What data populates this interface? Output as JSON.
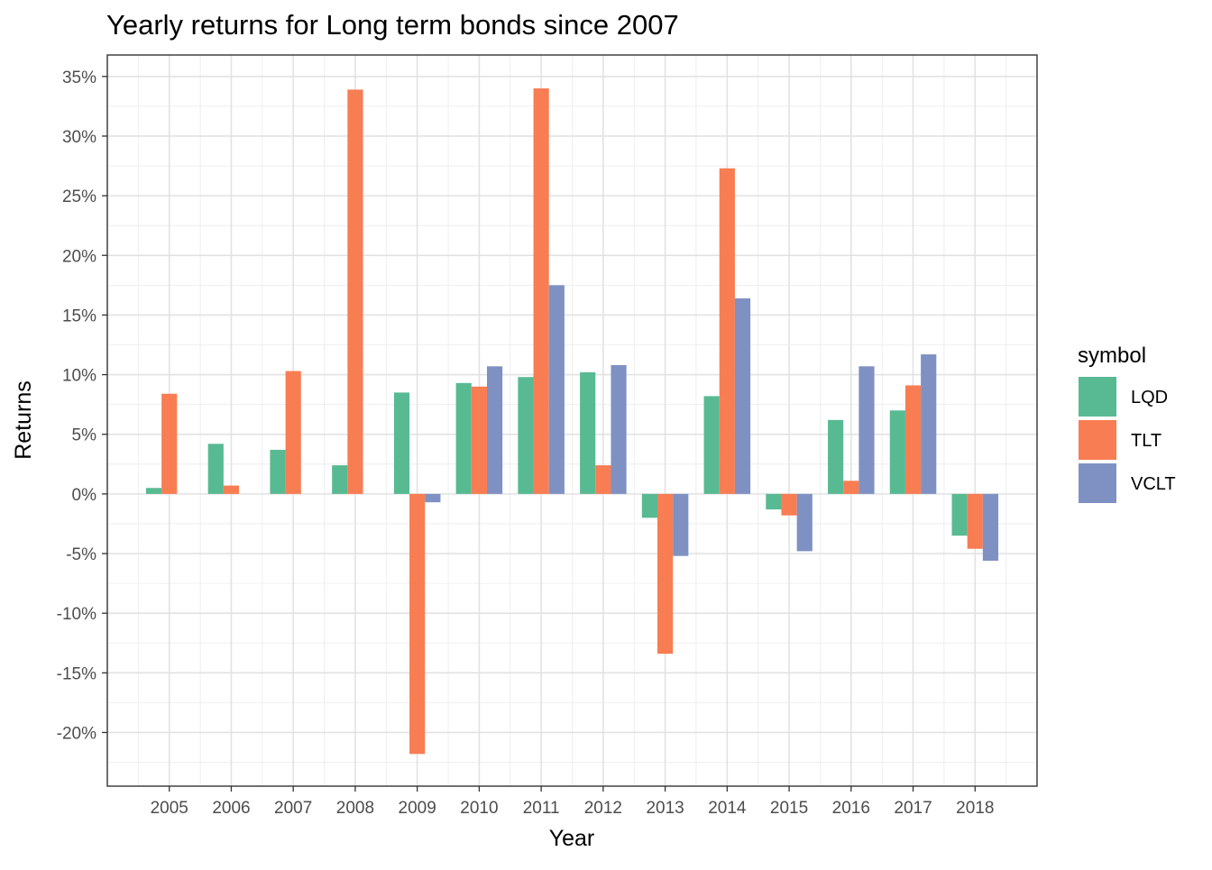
{
  "chart_data": {
    "type": "bar",
    "title": "Yearly returns for Long term bonds since 2007",
    "xlabel": "Year",
    "ylabel": "Returns",
    "categories": [
      "2005",
      "2006",
      "2007",
      "2008",
      "2009",
      "2010",
      "2011",
      "2012",
      "2013",
      "2014",
      "2015",
      "2016",
      "2017",
      "2018"
    ],
    "yticks": [
      35,
      30,
      25,
      20,
      15,
      10,
      5,
      0,
      -5,
      -10,
      -15,
      -20
    ],
    "ytick_labels": [
      "35%",
      "30%",
      "25%",
      "20%",
      "15%",
      "10%",
      "5%",
      "0%",
      "-5%",
      "-10%",
      "-15%",
      "-20%"
    ],
    "ylim": [
      -24.5,
      36.8
    ],
    "grid": true,
    "legend": {
      "title": "symbol",
      "position": "right"
    },
    "series": [
      {
        "name": "LQD",
        "color": "#58BA93",
        "values": [
          0.5,
          4.2,
          3.7,
          2.4,
          8.5,
          9.3,
          9.8,
          10.2,
          -2.0,
          8.2,
          -1.3,
          6.2,
          7.0,
          -3.5
        ]
      },
      {
        "name": "TLT",
        "color": "#F87D52",
        "values": [
          8.4,
          0.7,
          10.3,
          33.9,
          -21.8,
          9.0,
          34.0,
          2.4,
          -13.4,
          27.3,
          -1.8,
          1.1,
          9.1,
          -4.6
        ]
      },
      {
        "name": "VCLT",
        "color": "#7F91C2",
        "values": [
          null,
          null,
          null,
          null,
          -0.7,
          10.7,
          17.5,
          10.8,
          -5.2,
          16.4,
          -4.8,
          10.7,
          11.7,
          -5.6
        ]
      }
    ]
  }
}
